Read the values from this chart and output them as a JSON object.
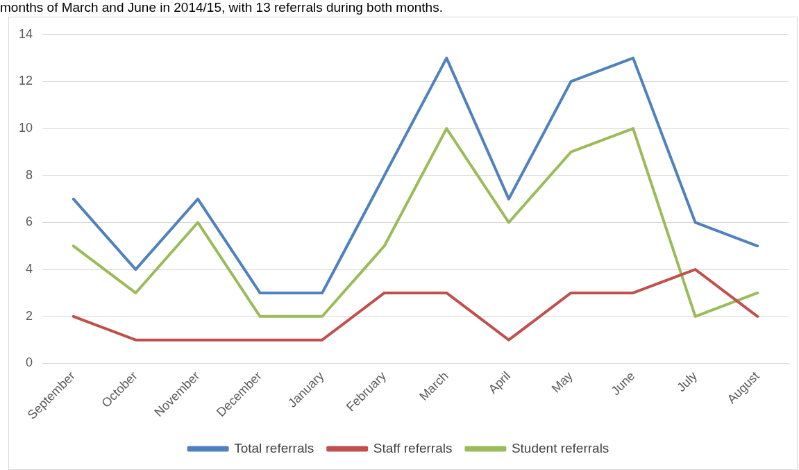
{
  "chart_data": {
    "type": "line",
    "annotations": [
      "months of March and June in 2014/15, with 13 referrals during both months."
    ],
    "categories": [
      "September",
      "October",
      "November",
      "December",
      "January",
      "February",
      "March",
      "April",
      "May",
      "June",
      "July",
      "August"
    ],
    "series": [
      {
        "name": "Total referrals",
        "color": "#4f81bd",
        "values": [
          7,
          4,
          7,
          3,
          3,
          8,
          13,
          7,
          12,
          13,
          6,
          5
        ]
      },
      {
        "name": "Staff referrals",
        "color": "#c0504d",
        "values": [
          2,
          1,
          1,
          1,
          1,
          3,
          3,
          1,
          3,
          3,
          4,
          2
        ]
      },
      {
        "name": "Student referrals",
        "color": "#9bbb59",
        "values": [
          5,
          3,
          6,
          2,
          2,
          5,
          10,
          6,
          9,
          10,
          2,
          3
        ]
      }
    ],
    "ylim": [
      0,
      14
    ],
    "yticks": [
      0,
      2,
      4,
      6,
      8,
      10,
      12,
      14
    ],
    "grid": "y",
    "legend": "bottom",
    "marker": "none",
    "line_style": "solid"
  }
}
